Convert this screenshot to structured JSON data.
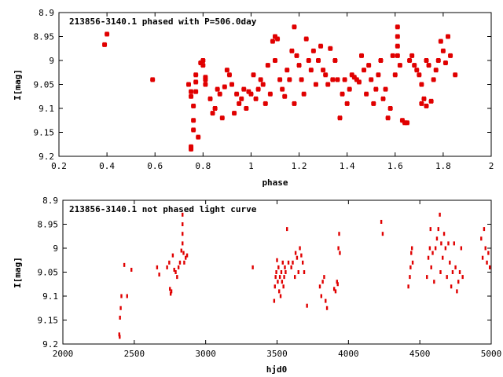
{
  "chart_data": [
    {
      "type": "scatter",
      "title": "213856-3140.1 phased with P=506.0day",
      "xlabel": "phase",
      "ylabel": "I[mag]",
      "xlim": [
        0.2,
        2.0
      ],
      "ylim": [
        9.2,
        8.9
      ],
      "y_inverted": true,
      "xticks": [
        "0.2",
        "0.4",
        "0.6",
        "0.8",
        "1",
        "1.2",
        "1.4",
        "1.6",
        "1.8",
        "2"
      ],
      "yticks": [
        "8.9",
        "8.95",
        "9",
        "9.05",
        "9.1",
        "9.15",
        "9.2"
      ],
      "marker_color": "#e00000",
      "points": [
        [
          0.39,
          8.967
        ],
        [
          0.4,
          8.945
        ],
        [
          0.59,
          9.04
        ],
        [
          0.74,
          9.05
        ],
        [
          0.75,
          9.065
        ],
        [
          0.75,
          9.075
        ],
        [
          0.75,
          9.18
        ],
        [
          0.75,
          9.185
        ],
        [
          0.76,
          9.145
        ],
        [
          0.76,
          9.125
        ],
        [
          0.76,
          9.095
        ],
        [
          0.77,
          9.03
        ],
        [
          0.77,
          9.065
        ],
        [
          0.77,
          9.045
        ],
        [
          0.78,
          9.16
        ],
        [
          0.79,
          9.005
        ],
        [
          0.8,
          9.0
        ],
        [
          0.8,
          9.01
        ],
        [
          0.81,
          9.035
        ],
        [
          0.81,
          9.04
        ],
        [
          0.81,
          9.05
        ],
        [
          0.83,
          9.08
        ],
        [
          0.84,
          9.11
        ],
        [
          0.85,
          9.1
        ],
        [
          0.86,
          9.06
        ],
        [
          0.87,
          9.07
        ],
        [
          0.88,
          9.12
        ],
        [
          0.89,
          9.055
        ],
        [
          0.9,
          9.02
        ],
        [
          0.91,
          9.03
        ],
        [
          0.92,
          9.05
        ],
        [
          0.93,
          9.11
        ],
        [
          0.94,
          9.07
        ],
        [
          0.95,
          9.09
        ],
        [
          0.96,
          9.08
        ],
        [
          0.97,
          9.06
        ],
        [
          0.98,
          9.1
        ],
        [
          0.99,
          9.065
        ],
        [
          1.0,
          9.07
        ],
        [
          1.01,
          9.03
        ],
        [
          1.02,
          9.08
        ],
        [
          1.03,
          9.06
        ],
        [
          1.04,
          9.04
        ],
        [
          1.05,
          9.05
        ],
        [
          1.06,
          9.09
        ],
        [
          1.07,
          9.01
        ],
        [
          1.08,
          9.07
        ],
        [
          1.09,
          8.96
        ],
        [
          1.1,
          8.95
        ],
        [
          1.1,
          9.0
        ],
        [
          1.11,
          8.955
        ],
        [
          1.12,
          9.04
        ],
        [
          1.13,
          9.06
        ],
        [
          1.14,
          9.075
        ],
        [
          1.15,
          9.02
        ],
        [
          1.16,
          9.04
        ],
        [
          1.17,
          8.98
        ],
        [
          1.18,
          8.93
        ],
        [
          1.18,
          9.09
        ],
        [
          1.19,
          8.99
        ],
        [
          1.2,
          9.01
        ],
        [
          1.21,
          9.04
        ],
        [
          1.22,
          9.07
        ],
        [
          1.23,
          8.955
        ],
        [
          1.24,
          9.0
        ],
        [
          1.25,
          9.02
        ],
        [
          1.26,
          8.98
        ],
        [
          1.27,
          9.05
        ],
        [
          1.28,
          9.0
        ],
        [
          1.29,
          8.97
        ],
        [
          1.3,
          9.02
        ],
        [
          1.31,
          9.03
        ],
        [
          1.32,
          9.05
        ],
        [
          1.33,
          8.975
        ],
        [
          1.34,
          9.04
        ],
        [
          1.35,
          9.0
        ],
        [
          1.36,
          9.04
        ],
        [
          1.37,
          9.12
        ],
        [
          1.38,
          9.07
        ],
        [
          1.39,
          9.04
        ],
        [
          1.4,
          9.09
        ],
        [
          1.41,
          9.06
        ],
        [
          1.42,
          9.03
        ],
        [
          1.43,
          9.035
        ],
        [
          1.44,
          9.04
        ],
        [
          1.45,
          9.045
        ],
        [
          1.46,
          8.99
        ],
        [
          1.47,
          9.02
        ],
        [
          1.48,
          9.07
        ],
        [
          1.49,
          9.01
        ],
        [
          1.5,
          9.04
        ],
        [
          1.51,
          9.09
        ],
        [
          1.52,
          9.06
        ],
        [
          1.53,
          9.03
        ],
        [
          1.54,
          9.0
        ],
        [
          1.55,
          9.08
        ],
        [
          1.56,
          9.06
        ],
        [
          1.57,
          9.12
        ],
        [
          1.58,
          9.1
        ],
        [
          1.59,
          8.99
        ],
        [
          1.6,
          9.03
        ],
        [
          1.61,
          8.93
        ],
        [
          1.61,
          8.95
        ],
        [
          1.61,
          8.97
        ],
        [
          1.61,
          8.99
        ],
        [
          1.62,
          9.01
        ],
        [
          1.63,
          9.125
        ],
        [
          1.64,
          9.13
        ],
        [
          1.65,
          9.13
        ],
        [
          1.66,
          9.0
        ],
        [
          1.67,
          8.99
        ],
        [
          1.68,
          9.01
        ],
        [
          1.69,
          9.02
        ],
        [
          1.7,
          9.03
        ],
        [
          1.71,
          9.05
        ],
        [
          1.71,
          9.09
        ],
        [
          1.72,
          9.08
        ],
        [
          1.73,
          9.095
        ],
        [
          1.73,
          9.0
        ],
        [
          1.74,
          9.01
        ],
        [
          1.75,
          9.085
        ],
        [
          1.76,
          9.04
        ],
        [
          1.77,
          9.02
        ],
        [
          1.78,
          9.0
        ],
        [
          1.79,
          8.96
        ],
        [
          1.8,
          8.98
        ],
        [
          1.81,
          9.005
        ],
        [
          1.82,
          8.95
        ],
        [
          1.83,
          8.99
        ],
        [
          1.85,
          9.03
        ]
      ]
    },
    {
      "type": "scatter",
      "title": "213856-3140.1 not phased light curve",
      "xlabel": "hjd0",
      "ylabel": "I[mag]",
      "xlim": [
        2000,
        5000
      ],
      "ylim": [
        9.2,
        8.9
      ],
      "y_inverted": true,
      "xticks": [
        "2000",
        "2500",
        "3000",
        "3500",
        "4000",
        "4500",
        "5000"
      ],
      "yticks": [
        "8.9",
        "8.95",
        "9",
        "9.05",
        "9.1",
        "9.15",
        "9.2"
      ],
      "marker_color": "#e00000",
      "points": [
        [
          2395,
          9.18
        ],
        [
          2398,
          9.185
        ],
        [
          2400,
          9.145
        ],
        [
          2405,
          9.125
        ],
        [
          2410,
          9.1
        ],
        [
          2430,
          9.035
        ],
        [
          2450,
          9.1
        ],
        [
          2480,
          9.045
        ],
        [
          2660,
          9.04
        ],
        [
          2675,
          9.055
        ],
        [
          2730,
          9.04
        ],
        [
          2745,
          9.03
        ],
        [
          2750,
          9.085
        ],
        [
          2755,
          9.095
        ],
        [
          2760,
          9.09
        ],
        [
          2770,
          9.015
        ],
        [
          2780,
          9.045
        ],
        [
          2790,
          9.05
        ],
        [
          2800,
          9.06
        ],
        [
          2810,
          9.04
        ],
        [
          2820,
          9.03
        ],
        [
          2830,
          9.005
        ],
        [
          2838,
          8.93
        ],
        [
          2838,
          8.95
        ],
        [
          2838,
          8.97
        ],
        [
          2838,
          8.99
        ],
        [
          2845,
          9.01
        ],
        [
          2850,
          9.03
        ],
        [
          2860,
          9.02
        ],
        [
          2870,
          9.015
        ],
        [
          3330,
          9.04
        ],
        [
          3480,
          9.11
        ],
        [
          3485,
          9.08
        ],
        [
          3490,
          9.06
        ],
        [
          3495,
          9.05
        ],
        [
          3500,
          9.025
        ],
        [
          3505,
          9.07
        ],
        [
          3510,
          9.04
        ],
        [
          3515,
          9.09
        ],
        [
          3520,
          9.06
        ],
        [
          3525,
          9.1
        ],
        [
          3530,
          9.05
        ],
        [
          3535,
          9.07
        ],
        [
          3540,
          9.03
        ],
        [
          3545,
          9.08
        ],
        [
          3550,
          9.06
        ],
        [
          3555,
          9.04
        ],
        [
          3560,
          9.05
        ],
        [
          3570,
          8.96
        ],
        [
          3580,
          9.03
        ],
        [
          3600,
          9.04
        ],
        [
          3610,
          9.03
        ],
        [
          3625,
          9.06
        ],
        [
          3630,
          9.01
        ],
        [
          3640,
          9.02
        ],
        [
          3650,
          9.05
        ],
        [
          3660,
          9.0
        ],
        [
          3670,
          9.015
        ],
        [
          3680,
          9.03
        ],
        [
          3690,
          9.05
        ],
        [
          3710,
          9.12
        ],
        [
          3800,
          9.08
        ],
        [
          3810,
          9.1
        ],
        [
          3820,
          9.07
        ],
        [
          3830,
          9.06
        ],
        [
          3840,
          9.11
        ],
        [
          3850,
          9.125
        ],
        [
          3900,
          9.085
        ],
        [
          3910,
          9.09
        ],
        [
          3920,
          9.07
        ],
        [
          3925,
          9.075
        ],
        [
          3930,
          9.0
        ],
        [
          3935,
          8.97
        ],
        [
          3940,
          9.01
        ],
        [
          4230,
          8.945
        ],
        [
          4240,
          8.97
        ],
        [
          4420,
          9.08
        ],
        [
          4430,
          9.06
        ],
        [
          4435,
          9.04
        ],
        [
          4440,
          9.01
        ],
        [
          4445,
          9.0
        ],
        [
          4450,
          9.03
        ],
        [
          4550,
          9.06
        ],
        [
          4560,
          9.02
        ],
        [
          4570,
          9.0
        ],
        [
          4575,
          8.96
        ],
        [
          4580,
          9.04
        ],
        [
          4590,
          9.01
        ],
        [
          4600,
          9.07
        ],
        [
          4610,
          9.0
        ],
        [
          4620,
          8.98
        ],
        [
          4630,
          8.96
        ],
        [
          4640,
          8.93
        ],
        [
          4645,
          9.05
        ],
        [
          4650,
          8.99
        ],
        [
          4660,
          9.02
        ],
        [
          4670,
          8.97
        ],
        [
          4680,
          9.0
        ],
        [
          4690,
          9.06
        ],
        [
          4700,
          8.99
        ],
        [
          4710,
          9.03
        ],
        [
          4720,
          9.08
        ],
        [
          4730,
          9.05
        ],
        [
          4740,
          8.99
        ],
        [
          4750,
          9.04
        ],
        [
          4760,
          9.09
        ],
        [
          4770,
          9.07
        ],
        [
          4780,
          9.05
        ],
        [
          4790,
          9.0
        ],
        [
          4800,
          9.06
        ],
        [
          4930,
          8.98
        ],
        [
          4940,
          9.02
        ],
        [
          4950,
          8.96
        ],
        [
          4960,
          9.0
        ],
        [
          4970,
          9.03
        ],
        [
          4980,
          9.01
        ],
        [
          4990,
          9.04
        ]
      ]
    }
  ]
}
